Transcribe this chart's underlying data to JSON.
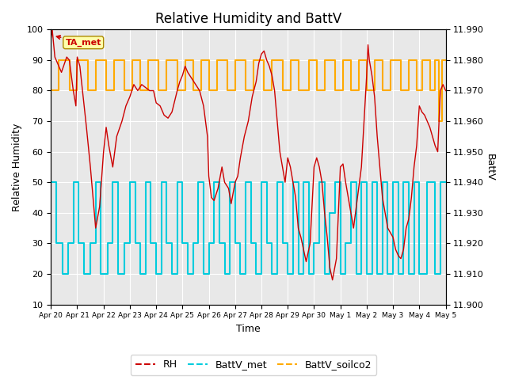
{
  "title": "Relative Humidity and BattV",
  "xlabel": "Time",
  "ylabel_left": "Relative Humidity",
  "ylabel_right": "BattV",
  "annotation_label": "TA_met",
  "ylim_left": [
    10,
    100
  ],
  "ylim_right": [
    11.9,
    11.99
  ],
  "yticks_left": [
    10,
    20,
    30,
    40,
    50,
    60,
    70,
    80,
    90,
    100
  ],
  "yticks_right": [
    11.9,
    11.91,
    11.92,
    11.93,
    11.94,
    11.95,
    11.96,
    11.97,
    11.98,
    11.99
  ],
  "rh_color": "#cc0000",
  "battv_met_color": "#00ccdd",
  "battv_soilco2_color": "#ffaa00",
  "background_color": "#ffffff",
  "plot_bg_color": "#e8e8e8",
  "grid_color": "#ffffff",
  "title_fontsize": 12,
  "axis_fontsize": 9,
  "tick_fontsize": 8,
  "legend_fontsize": 9,
  "xticklabels": [
    "Apr 20",
    "Apr 21",
    "Apr 22",
    "Apr 23",
    "Apr 24",
    "Apr 25",
    "Apr 26",
    "Apr 27",
    "Apr 28",
    "Apr 29",
    "Apr 30",
    "May 1",
    "May 2",
    "May 3",
    "May 4",
    "May 5"
  ],
  "rh_data": [
    [
      0.0,
      97
    ],
    [
      0.05,
      100
    ],
    [
      0.15,
      91
    ],
    [
      0.3,
      88
    ],
    [
      0.4,
      86
    ],
    [
      0.6,
      91
    ],
    [
      0.7,
      90
    ],
    [
      0.85,
      80
    ],
    [
      0.95,
      75
    ],
    [
      1.0,
      91
    ],
    [
      1.1,
      88
    ],
    [
      1.2,
      80
    ],
    [
      1.35,
      68
    ],
    [
      1.5,
      55
    ],
    [
      1.7,
      35
    ],
    [
      1.85,
      42
    ],
    [
      2.0,
      60
    ],
    [
      2.1,
      68
    ],
    [
      2.2,
      62
    ],
    [
      2.35,
      55
    ],
    [
      2.5,
      65
    ],
    [
      2.7,
      70
    ],
    [
      2.85,
      75
    ],
    [
      3.0,
      78
    ],
    [
      3.15,
      82
    ],
    [
      3.3,
      80
    ],
    [
      3.45,
      82
    ],
    [
      3.6,
      81
    ],
    [
      3.75,
      80
    ],
    [
      3.9,
      80
    ],
    [
      4.0,
      76
    ],
    [
      4.15,
      75
    ],
    [
      4.3,
      72
    ],
    [
      4.45,
      71
    ],
    [
      4.6,
      73
    ],
    [
      4.8,
      80
    ],
    [
      4.9,
      83
    ],
    [
      5.0,
      85
    ],
    [
      5.1,
      88
    ],
    [
      5.2,
      86
    ],
    [
      5.35,
      84
    ],
    [
      5.5,
      82
    ],
    [
      5.65,
      80
    ],
    [
      5.8,
      75
    ],
    [
      5.95,
      65
    ],
    [
      6.0,
      52
    ],
    [
      6.1,
      45
    ],
    [
      6.2,
      44
    ],
    [
      6.35,
      48
    ],
    [
      6.5,
      55
    ],
    [
      6.6,
      50
    ],
    [
      6.75,
      48
    ],
    [
      6.85,
      43
    ],
    [
      7.0,
      50
    ],
    [
      7.1,
      52
    ],
    [
      7.2,
      58
    ],
    [
      7.35,
      65
    ],
    [
      7.5,
      70
    ],
    [
      7.65,
      78
    ],
    [
      7.8,
      83
    ],
    [
      7.9,
      89
    ],
    [
      8.0,
      92
    ],
    [
      8.1,
      93
    ],
    [
      8.2,
      90
    ],
    [
      8.3,
      88
    ],
    [
      8.4,
      85
    ],
    [
      8.5,
      80
    ],
    [
      8.6,
      70
    ],
    [
      8.7,
      60
    ],
    [
      8.8,
      55
    ],
    [
      8.9,
      50
    ],
    [
      9.0,
      58
    ],
    [
      9.1,
      55
    ],
    [
      9.2,
      50
    ],
    [
      9.3,
      45
    ],
    [
      9.4,
      35
    ],
    [
      9.5,
      32
    ],
    [
      9.6,
      28
    ],
    [
      9.7,
      24
    ],
    [
      9.85,
      30
    ],
    [
      10.0,
      55
    ],
    [
      10.1,
      58
    ],
    [
      10.2,
      55
    ],
    [
      10.3,
      50
    ],
    [
      10.4,
      40
    ],
    [
      10.5,
      32
    ],
    [
      10.6,
      22
    ],
    [
      10.7,
      18
    ],
    [
      10.85,
      25
    ],
    [
      11.0,
      55
    ],
    [
      11.1,
      56
    ],
    [
      11.2,
      50
    ],
    [
      11.3,
      45
    ],
    [
      11.4,
      40
    ],
    [
      11.5,
      35
    ],
    [
      11.65,
      45
    ],
    [
      11.8,
      55
    ],
    [
      11.9,
      70
    ],
    [
      12.0,
      85
    ],
    [
      12.05,
      95
    ],
    [
      12.1,
      90
    ],
    [
      12.2,
      85
    ],
    [
      12.3,
      78
    ],
    [
      12.4,
      65
    ],
    [
      12.5,
      55
    ],
    [
      12.6,
      45
    ],
    [
      12.7,
      40
    ],
    [
      12.8,
      35
    ],
    [
      13.0,
      32
    ],
    [
      13.1,
      28
    ],
    [
      13.2,
      26
    ],
    [
      13.3,
      25
    ],
    [
      13.4,
      28
    ],
    [
      13.5,
      35
    ],
    [
      13.6,
      38
    ],
    [
      13.7,
      45
    ],
    [
      13.8,
      55
    ],
    [
      13.9,
      62
    ],
    [
      14.0,
      75
    ],
    [
      14.1,
      73
    ],
    [
      14.2,
      72
    ],
    [
      14.3,
      70
    ],
    [
      14.4,
      68
    ],
    [
      14.5,
      65
    ],
    [
      14.6,
      62
    ],
    [
      14.7,
      60
    ],
    [
      14.8,
      80
    ],
    [
      14.9,
      82
    ],
    [
      15.0,
      80
    ]
  ],
  "battv_met_data": [
    [
      0.0,
      50
    ],
    [
      0.2,
      50
    ],
    [
      0.2,
      30
    ],
    [
      0.45,
      30
    ],
    [
      0.45,
      20
    ],
    [
      0.65,
      20
    ],
    [
      0.65,
      30
    ],
    [
      0.85,
      30
    ],
    [
      0.85,
      50
    ],
    [
      1.05,
      50
    ],
    [
      1.05,
      30
    ],
    [
      1.25,
      30
    ],
    [
      1.25,
      20
    ],
    [
      1.5,
      20
    ],
    [
      1.5,
      30
    ],
    [
      1.7,
      30
    ],
    [
      1.7,
      50
    ],
    [
      1.9,
      50
    ],
    [
      1.9,
      20
    ],
    [
      2.15,
      20
    ],
    [
      2.15,
      30
    ],
    [
      2.35,
      30
    ],
    [
      2.35,
      50
    ],
    [
      2.55,
      50
    ],
    [
      2.55,
      20
    ],
    [
      2.8,
      20
    ],
    [
      2.8,
      30
    ],
    [
      3.0,
      30
    ],
    [
      3.0,
      50
    ],
    [
      3.2,
      50
    ],
    [
      3.2,
      30
    ],
    [
      3.4,
      30
    ],
    [
      3.4,
      20
    ],
    [
      3.6,
      20
    ],
    [
      3.6,
      50
    ],
    [
      3.8,
      50
    ],
    [
      3.8,
      30
    ],
    [
      4.0,
      30
    ],
    [
      4.0,
      20
    ],
    [
      4.2,
      20
    ],
    [
      4.2,
      50
    ],
    [
      4.4,
      50
    ],
    [
      4.4,
      30
    ],
    [
      4.6,
      30
    ],
    [
      4.6,
      20
    ],
    [
      4.8,
      20
    ],
    [
      4.8,
      50
    ],
    [
      5.0,
      50
    ],
    [
      5.0,
      30
    ],
    [
      5.2,
      30
    ],
    [
      5.2,
      20
    ],
    [
      5.4,
      20
    ],
    [
      5.4,
      30
    ],
    [
      5.6,
      30
    ],
    [
      5.6,
      50
    ],
    [
      5.8,
      50
    ],
    [
      5.8,
      20
    ],
    [
      6.0,
      20
    ],
    [
      6.0,
      30
    ],
    [
      6.2,
      30
    ],
    [
      6.2,
      50
    ],
    [
      6.4,
      50
    ],
    [
      6.4,
      30
    ],
    [
      6.6,
      30
    ],
    [
      6.6,
      20
    ],
    [
      6.8,
      20
    ],
    [
      6.8,
      50
    ],
    [
      7.0,
      50
    ],
    [
      7.0,
      30
    ],
    [
      7.2,
      30
    ],
    [
      7.2,
      20
    ],
    [
      7.4,
      20
    ],
    [
      7.4,
      50
    ],
    [
      7.6,
      50
    ],
    [
      7.6,
      30
    ],
    [
      7.8,
      30
    ],
    [
      7.8,
      20
    ],
    [
      8.0,
      20
    ],
    [
      8.0,
      50
    ],
    [
      8.2,
      50
    ],
    [
      8.2,
      30
    ],
    [
      8.4,
      30
    ],
    [
      8.4,
      20
    ],
    [
      8.6,
      20
    ],
    [
      8.6,
      50
    ],
    [
      8.8,
      50
    ],
    [
      8.8,
      30
    ],
    [
      9.0,
      30
    ],
    [
      9.0,
      20
    ],
    [
      9.2,
      20
    ],
    [
      9.2,
      50
    ],
    [
      9.4,
      50
    ],
    [
      9.4,
      20
    ],
    [
      9.6,
      20
    ],
    [
      9.6,
      50
    ],
    [
      9.8,
      50
    ],
    [
      9.8,
      20
    ],
    [
      10.0,
      20
    ],
    [
      10.0,
      30
    ],
    [
      10.2,
      30
    ],
    [
      10.2,
      50
    ],
    [
      10.4,
      50
    ],
    [
      10.4,
      20
    ],
    [
      10.6,
      20
    ],
    [
      10.6,
      40
    ],
    [
      10.8,
      40
    ],
    [
      10.8,
      50
    ],
    [
      11.0,
      50
    ],
    [
      11.0,
      20
    ],
    [
      11.2,
      20
    ],
    [
      11.2,
      30
    ],
    [
      11.4,
      30
    ],
    [
      11.4,
      50
    ],
    [
      11.6,
      50
    ],
    [
      11.6,
      20
    ],
    [
      11.8,
      20
    ],
    [
      11.8,
      50
    ],
    [
      12.0,
      50
    ],
    [
      12.0,
      20
    ],
    [
      12.2,
      20
    ],
    [
      12.2,
      50
    ],
    [
      12.4,
      50
    ],
    [
      12.4,
      20
    ],
    [
      12.6,
      20
    ],
    [
      12.6,
      50
    ],
    [
      12.8,
      50
    ],
    [
      12.8,
      20
    ],
    [
      13.0,
      20
    ],
    [
      13.0,
      50
    ],
    [
      13.2,
      50
    ],
    [
      13.2,
      20
    ],
    [
      13.4,
      20
    ],
    [
      13.4,
      50
    ],
    [
      13.6,
      50
    ],
    [
      13.6,
      20
    ],
    [
      13.8,
      20
    ],
    [
      13.8,
      50
    ],
    [
      14.0,
      50
    ],
    [
      14.0,
      20
    ],
    [
      14.3,
      20
    ],
    [
      14.3,
      50
    ],
    [
      14.6,
      50
    ],
    [
      14.6,
      20
    ],
    [
      14.8,
      20
    ],
    [
      14.8,
      50
    ],
    [
      15.0,
      50
    ]
  ],
  "battv_soilco2_data": [
    [
      0.0,
      80
    ],
    [
      0.3,
      80
    ],
    [
      0.3,
      90
    ],
    [
      0.7,
      90
    ],
    [
      0.7,
      80
    ],
    [
      1.0,
      80
    ],
    [
      1.0,
      90
    ],
    [
      1.4,
      90
    ],
    [
      1.4,
      80
    ],
    [
      1.7,
      80
    ],
    [
      1.7,
      90
    ],
    [
      2.1,
      90
    ],
    [
      2.1,
      80
    ],
    [
      2.4,
      80
    ],
    [
      2.4,
      90
    ],
    [
      2.8,
      90
    ],
    [
      2.8,
      80
    ],
    [
      3.1,
      80
    ],
    [
      3.1,
      90
    ],
    [
      3.4,
      90
    ],
    [
      3.4,
      80
    ],
    [
      3.7,
      80
    ],
    [
      3.7,
      90
    ],
    [
      4.1,
      90
    ],
    [
      4.1,
      80
    ],
    [
      4.4,
      80
    ],
    [
      4.4,
      90
    ],
    [
      4.8,
      90
    ],
    [
      4.8,
      80
    ],
    [
      5.1,
      80
    ],
    [
      5.1,
      90
    ],
    [
      5.4,
      90
    ],
    [
      5.4,
      80
    ],
    [
      5.7,
      80
    ],
    [
      5.7,
      90
    ],
    [
      6.0,
      90
    ],
    [
      6.0,
      80
    ],
    [
      6.3,
      80
    ],
    [
      6.3,
      90
    ],
    [
      6.7,
      90
    ],
    [
      6.7,
      80
    ],
    [
      7.0,
      80
    ],
    [
      7.0,
      90
    ],
    [
      7.4,
      90
    ],
    [
      7.4,
      80
    ],
    [
      7.7,
      80
    ],
    [
      7.7,
      90
    ],
    [
      8.1,
      90
    ],
    [
      8.1,
      80
    ],
    [
      8.4,
      80
    ],
    [
      8.4,
      90
    ],
    [
      8.8,
      90
    ],
    [
      8.8,
      80
    ],
    [
      9.1,
      80
    ],
    [
      9.1,
      90
    ],
    [
      9.4,
      90
    ],
    [
      9.4,
      80
    ],
    [
      9.8,
      80
    ],
    [
      9.8,
      90
    ],
    [
      10.1,
      90
    ],
    [
      10.1,
      80
    ],
    [
      10.4,
      80
    ],
    [
      10.4,
      90
    ],
    [
      10.8,
      90
    ],
    [
      10.8,
      80
    ],
    [
      11.1,
      80
    ],
    [
      11.1,
      90
    ],
    [
      11.4,
      90
    ],
    [
      11.4,
      80
    ],
    [
      11.7,
      80
    ],
    [
      11.7,
      90
    ],
    [
      12.0,
      90
    ],
    [
      12.0,
      80
    ],
    [
      12.3,
      80
    ],
    [
      12.3,
      90
    ],
    [
      12.6,
      90
    ],
    [
      12.6,
      80
    ],
    [
      12.9,
      80
    ],
    [
      12.9,
      90
    ],
    [
      13.3,
      90
    ],
    [
      13.3,
      80
    ],
    [
      13.6,
      80
    ],
    [
      13.6,
      90
    ],
    [
      13.9,
      90
    ],
    [
      13.9,
      80
    ],
    [
      14.1,
      80
    ],
    [
      14.1,
      90
    ],
    [
      14.4,
      90
    ],
    [
      14.4,
      80
    ],
    [
      14.6,
      80
    ],
    [
      14.6,
      90
    ],
    [
      14.75,
      90
    ],
    [
      14.75,
      70
    ],
    [
      14.85,
      70
    ],
    [
      14.85,
      90
    ],
    [
      15.0,
      90
    ]
  ]
}
